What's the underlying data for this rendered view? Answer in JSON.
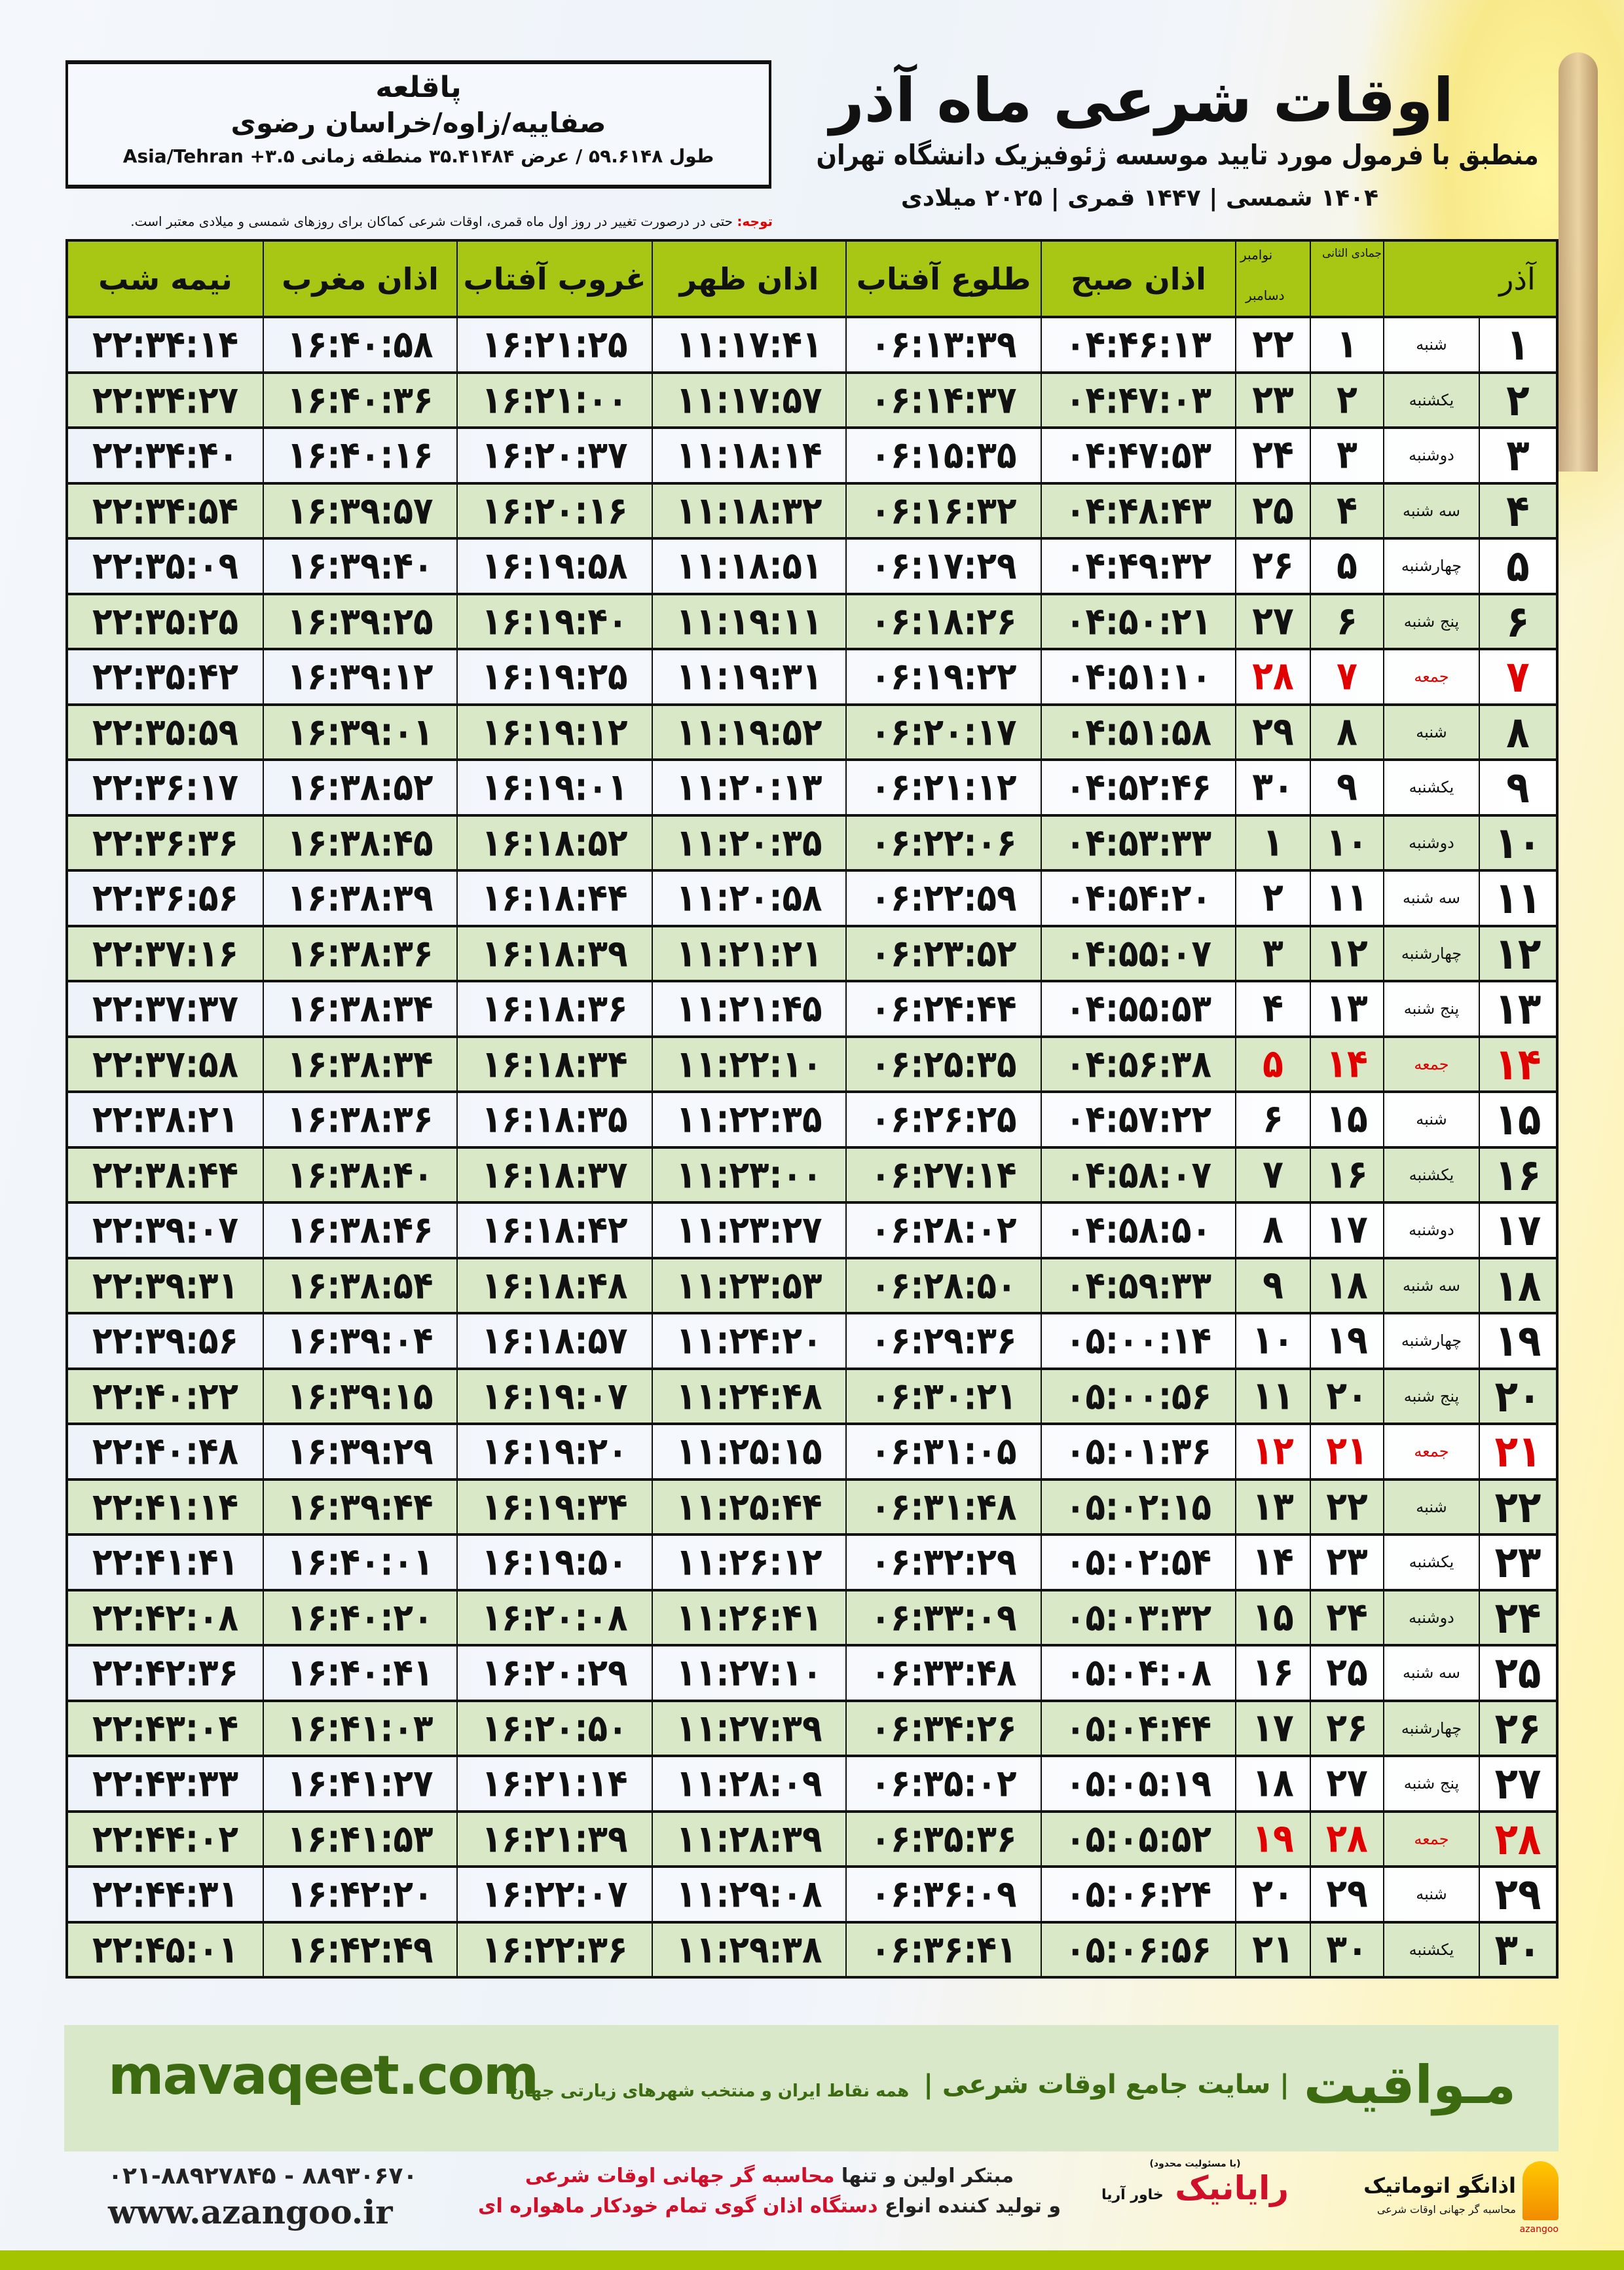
{
  "header": {
    "title": "اوقات شرعی ماه آذر",
    "subtitle": "منطبق با فرمول مورد تایید موسسه ژئوفیزیک دانشگاه تهران",
    "years": "۱۴۰۴ شمسی | ۱۴۴۷ قمری | ۲۰۲۵ میلادی"
  },
  "location": {
    "city": "پاقلعه",
    "region": "صفاییه/زاوه/خراسان رضوی",
    "coords": "طول ۵۹.۶۱۴۸ / عرض ۳۵.۴۱۴۸۴ منطقه زمانی ۳.۵+ Asia/Tehran"
  },
  "note": {
    "label": "توجه:",
    "text": " حتی در درصورت تغییر در روز اول ماه قمری، اوقات شرعی کماکان برای روزهای شمسی و میلادی معتبر است."
  },
  "table": {
    "columns": {
      "midnight": "نیمه شب",
      "maghrib": "اذان مغرب",
      "sunset": "غروب آفتاب",
      "dhuhr": "اذان ظهر",
      "sunrise": "طلوع آفتاب",
      "fajr": "اذان صبح",
      "hijri_month": "جمادی الثانی",
      "greg_month1": "نوامبر",
      "greg_month2": "دسامبر",
      "month": "آذر"
    },
    "friday_color": "#e00000",
    "header_color": "#a8c614",
    "rows": [
      {
        "day": "۱",
        "weekday": "شنبه",
        "hijri": "۱",
        "greg": "۲۲",
        "fajr": "۰۴:۴۶:۱۳",
        "sunrise": "۰۶:۱۳:۳۹",
        "dhuhr": "۱۱:۱۷:۴۱",
        "sunset": "۱۶:۲۱:۲۵",
        "maghrib": "۱۶:۴۰:۵۸",
        "midnight": "۲۲:۳۴:۱۴"
      },
      {
        "day": "۲",
        "weekday": "یکشنبه",
        "hijri": "۲",
        "greg": "۲۳",
        "fajr": "۰۴:۴۷:۰۳",
        "sunrise": "۰۶:۱۴:۳۷",
        "dhuhr": "۱۱:۱۷:۵۷",
        "sunset": "۱۶:۲۱:۰۰",
        "maghrib": "۱۶:۴۰:۳۶",
        "midnight": "۲۲:۳۴:۲۷"
      },
      {
        "day": "۳",
        "weekday": "دوشنبه",
        "hijri": "۳",
        "greg": "۲۴",
        "fajr": "۰۴:۴۷:۵۳",
        "sunrise": "۰۶:۱۵:۳۵",
        "dhuhr": "۱۱:۱۸:۱۴",
        "sunset": "۱۶:۲۰:۳۷",
        "maghrib": "۱۶:۴۰:۱۶",
        "midnight": "۲۲:۳۴:۴۰"
      },
      {
        "day": "۴",
        "weekday": "سه شنبه",
        "hijri": "۴",
        "greg": "۲۵",
        "fajr": "۰۴:۴۸:۴۳",
        "sunrise": "۰۶:۱۶:۳۲",
        "dhuhr": "۱۱:۱۸:۳۲",
        "sunset": "۱۶:۲۰:۱۶",
        "maghrib": "۱۶:۳۹:۵۷",
        "midnight": "۲۲:۳۴:۵۴"
      },
      {
        "day": "۵",
        "weekday": "چهارشنبه",
        "hijri": "۵",
        "greg": "۲۶",
        "fajr": "۰۴:۴۹:۳۲",
        "sunrise": "۰۶:۱۷:۲۹",
        "dhuhr": "۱۱:۱۸:۵۱",
        "sunset": "۱۶:۱۹:۵۸",
        "maghrib": "۱۶:۳۹:۴۰",
        "midnight": "۲۲:۳۵:۰۹"
      },
      {
        "day": "۶",
        "weekday": "پنج شنبه",
        "hijri": "۶",
        "greg": "۲۷",
        "fajr": "۰۴:۵۰:۲۱",
        "sunrise": "۰۶:۱۸:۲۶",
        "dhuhr": "۱۱:۱۹:۱۱",
        "sunset": "۱۶:۱۹:۴۰",
        "maghrib": "۱۶:۳۹:۲۵",
        "midnight": "۲۲:۳۵:۲۵"
      },
      {
        "day": "۷",
        "weekday": "جمعه",
        "friday": true,
        "hijri": "۷",
        "greg": "۲۸",
        "fajr": "۰۴:۵۱:۱۰",
        "sunrise": "۰۶:۱۹:۲۲",
        "dhuhr": "۱۱:۱۹:۳۱",
        "sunset": "۱۶:۱۹:۲۵",
        "maghrib": "۱۶:۳۹:۱۲",
        "midnight": "۲۲:۳۵:۴۲"
      },
      {
        "day": "۸",
        "weekday": "شنبه",
        "hijri": "۸",
        "greg": "۲۹",
        "fajr": "۰۴:۵۱:۵۸",
        "sunrise": "۰۶:۲۰:۱۷",
        "dhuhr": "۱۱:۱۹:۵۲",
        "sunset": "۱۶:۱۹:۱۲",
        "maghrib": "۱۶:۳۹:۰۱",
        "midnight": "۲۲:۳۵:۵۹"
      },
      {
        "day": "۹",
        "weekday": "یکشنبه",
        "hijri": "۹",
        "greg": "۳۰",
        "fajr": "۰۴:۵۲:۴۶",
        "sunrise": "۰۶:۲۱:۱۲",
        "dhuhr": "۱۱:۲۰:۱۳",
        "sunset": "۱۶:۱۹:۰۱",
        "maghrib": "۱۶:۳۸:۵۲",
        "midnight": "۲۲:۳۶:۱۷"
      },
      {
        "day": "۱۰",
        "weekday": "دوشنبه",
        "hijri": "۱۰",
        "greg": "۱",
        "fajr": "۰۴:۵۳:۳۳",
        "sunrise": "۰۶:۲۲:۰۶",
        "dhuhr": "۱۱:۲۰:۳۵",
        "sunset": "۱۶:۱۸:۵۲",
        "maghrib": "۱۶:۳۸:۴۵",
        "midnight": "۲۲:۳۶:۳۶"
      },
      {
        "day": "۱۱",
        "weekday": "سه شنبه",
        "hijri": "۱۱",
        "greg": "۲",
        "fajr": "۰۴:۵۴:۲۰",
        "sunrise": "۰۶:۲۲:۵۹",
        "dhuhr": "۱۱:۲۰:۵۸",
        "sunset": "۱۶:۱۸:۴۴",
        "maghrib": "۱۶:۳۸:۳۹",
        "midnight": "۲۲:۳۶:۵۶"
      },
      {
        "day": "۱۲",
        "weekday": "چهارشنبه",
        "hijri": "۱۲",
        "greg": "۳",
        "fajr": "۰۴:۵۵:۰۷",
        "sunrise": "۰۶:۲۳:۵۲",
        "dhuhr": "۱۱:۲۱:۲۱",
        "sunset": "۱۶:۱۸:۳۹",
        "maghrib": "۱۶:۳۸:۳۶",
        "midnight": "۲۲:۳۷:۱۶"
      },
      {
        "day": "۱۳",
        "weekday": "پنج شنبه",
        "hijri": "۱۳",
        "greg": "۴",
        "fajr": "۰۴:۵۵:۵۳",
        "sunrise": "۰۶:۲۴:۴۴",
        "dhuhr": "۱۱:۲۱:۴۵",
        "sunset": "۱۶:۱۸:۳۶",
        "maghrib": "۱۶:۳۸:۳۴",
        "midnight": "۲۲:۳۷:۳۷"
      },
      {
        "day": "۱۴",
        "weekday": "جمعه",
        "friday": true,
        "hijri": "۱۴",
        "greg": "۵",
        "fajr": "۰۴:۵۶:۳۸",
        "sunrise": "۰۶:۲۵:۳۵",
        "dhuhr": "۱۱:۲۲:۱۰",
        "sunset": "۱۶:۱۸:۳۴",
        "maghrib": "۱۶:۳۸:۳۴",
        "midnight": "۲۲:۳۷:۵۸"
      },
      {
        "day": "۱۵",
        "weekday": "شنبه",
        "hijri": "۱۵",
        "greg": "۶",
        "fajr": "۰۴:۵۷:۲۲",
        "sunrise": "۰۶:۲۶:۲۵",
        "dhuhr": "۱۱:۲۲:۳۵",
        "sunset": "۱۶:۱۸:۳۵",
        "maghrib": "۱۶:۳۸:۳۶",
        "midnight": "۲۲:۳۸:۲۱"
      },
      {
        "day": "۱۶",
        "weekday": "یکشنبه",
        "hijri": "۱۶",
        "greg": "۷",
        "fajr": "۰۴:۵۸:۰۷",
        "sunrise": "۰۶:۲۷:۱۴",
        "dhuhr": "۱۱:۲۳:۰۰",
        "sunset": "۱۶:۱۸:۳۷",
        "maghrib": "۱۶:۳۸:۴۰",
        "midnight": "۲۲:۳۸:۴۴"
      },
      {
        "day": "۱۷",
        "weekday": "دوشنبه",
        "hijri": "۱۷",
        "greg": "۸",
        "fajr": "۰۴:۵۸:۵۰",
        "sunrise": "۰۶:۲۸:۰۲",
        "dhuhr": "۱۱:۲۳:۲۷",
        "sunset": "۱۶:۱۸:۴۲",
        "maghrib": "۱۶:۳۸:۴۶",
        "midnight": "۲۲:۳۹:۰۷"
      },
      {
        "day": "۱۸",
        "weekday": "سه شنبه",
        "hijri": "۱۸",
        "greg": "۹",
        "fajr": "۰۴:۵۹:۳۳",
        "sunrise": "۰۶:۲۸:۵۰",
        "dhuhr": "۱۱:۲۳:۵۳",
        "sunset": "۱۶:۱۸:۴۸",
        "maghrib": "۱۶:۳۸:۵۴",
        "midnight": "۲۲:۳۹:۳۱"
      },
      {
        "day": "۱۹",
        "weekday": "چهارشنبه",
        "hijri": "۱۹",
        "greg": "۱۰",
        "fajr": "۰۵:۰۰:۱۴",
        "sunrise": "۰۶:۲۹:۳۶",
        "dhuhr": "۱۱:۲۴:۲۰",
        "sunset": "۱۶:۱۸:۵۷",
        "maghrib": "۱۶:۳۹:۰۴",
        "midnight": "۲۲:۳۹:۵۶"
      },
      {
        "day": "۲۰",
        "weekday": "پنج شنبه",
        "hijri": "۲۰",
        "greg": "۱۱",
        "fajr": "۰۵:۰۰:۵۶",
        "sunrise": "۰۶:۳۰:۲۱",
        "dhuhr": "۱۱:۲۴:۴۸",
        "sunset": "۱۶:۱۹:۰۷",
        "maghrib": "۱۶:۳۹:۱۵",
        "midnight": "۲۲:۴۰:۲۲"
      },
      {
        "day": "۲۱",
        "weekday": "جمعه",
        "friday": true,
        "hijri": "۲۱",
        "greg": "۱۲",
        "fajr": "۰۵:۰۱:۳۶",
        "sunrise": "۰۶:۳۱:۰۵",
        "dhuhr": "۱۱:۲۵:۱۵",
        "sunset": "۱۶:۱۹:۲۰",
        "maghrib": "۱۶:۳۹:۲۹",
        "midnight": "۲۲:۴۰:۴۸"
      },
      {
        "day": "۲۲",
        "weekday": "شنبه",
        "hijri": "۲۲",
        "greg": "۱۳",
        "fajr": "۰۵:۰۲:۱۵",
        "sunrise": "۰۶:۳۱:۴۸",
        "dhuhr": "۱۱:۲۵:۴۴",
        "sunset": "۱۶:۱۹:۳۴",
        "maghrib": "۱۶:۳۹:۴۴",
        "midnight": "۲۲:۴۱:۱۴"
      },
      {
        "day": "۲۳",
        "weekday": "یکشنبه",
        "hijri": "۲۳",
        "greg": "۱۴",
        "fajr": "۰۵:۰۲:۵۴",
        "sunrise": "۰۶:۳۲:۲۹",
        "dhuhr": "۱۱:۲۶:۱۲",
        "sunset": "۱۶:۱۹:۵۰",
        "maghrib": "۱۶:۴۰:۰۱",
        "midnight": "۲۲:۴۱:۴۱"
      },
      {
        "day": "۲۴",
        "weekday": "دوشنبه",
        "hijri": "۲۴",
        "greg": "۱۵",
        "fajr": "۰۵:۰۳:۳۲",
        "sunrise": "۰۶:۳۳:۰۹",
        "dhuhr": "۱۱:۲۶:۴۱",
        "sunset": "۱۶:۲۰:۰۸",
        "maghrib": "۱۶:۴۰:۲۰",
        "midnight": "۲۲:۴۲:۰۸"
      },
      {
        "day": "۲۵",
        "weekday": "سه شنبه",
        "hijri": "۲۵",
        "greg": "۱۶",
        "fajr": "۰۵:۰۴:۰۸",
        "sunrise": "۰۶:۳۳:۴۸",
        "dhuhr": "۱۱:۲۷:۱۰",
        "sunset": "۱۶:۲۰:۲۹",
        "maghrib": "۱۶:۴۰:۴۱",
        "midnight": "۲۲:۴۲:۳۶"
      },
      {
        "day": "۲۶",
        "weekday": "چهارشنبه",
        "hijri": "۲۶",
        "greg": "۱۷",
        "fajr": "۰۵:۰۴:۴۴",
        "sunrise": "۰۶:۳۴:۲۶",
        "dhuhr": "۱۱:۲۷:۳۹",
        "sunset": "۱۶:۲۰:۵۰",
        "maghrib": "۱۶:۴۱:۰۳",
        "midnight": "۲۲:۴۳:۰۴"
      },
      {
        "day": "۲۷",
        "weekday": "پنج شنبه",
        "hijri": "۲۷",
        "greg": "۱۸",
        "fajr": "۰۵:۰۵:۱۹",
        "sunrise": "۰۶:۳۵:۰۲",
        "dhuhr": "۱۱:۲۸:۰۹",
        "sunset": "۱۶:۲۱:۱۴",
        "maghrib": "۱۶:۴۱:۲۷",
        "midnight": "۲۲:۴۳:۳۳"
      },
      {
        "day": "۲۸",
        "weekday": "جمعه",
        "friday": true,
        "hijri": "۲۸",
        "greg": "۱۹",
        "fajr": "۰۵:۰۵:۵۲",
        "sunrise": "۰۶:۳۵:۳۶",
        "dhuhr": "۱۱:۲۸:۳۹",
        "sunset": "۱۶:۲۱:۳۹",
        "maghrib": "۱۶:۴۱:۵۳",
        "midnight": "۲۲:۴۴:۰۲"
      },
      {
        "day": "۲۹",
        "weekday": "شنبه",
        "hijri": "۲۹",
        "greg": "۲۰",
        "fajr": "۰۵:۰۶:۲۴",
        "sunrise": "۰۶:۳۶:۰۹",
        "dhuhr": "۱۱:۲۹:۰۸",
        "sunset": "۱۶:۲۲:۰۷",
        "maghrib": "۱۶:۴۲:۲۰",
        "midnight": "۲۲:۴۴:۳۱"
      },
      {
        "day": "۳۰",
        "weekday": "یکشنبه",
        "hijri": "۳۰",
        "greg": "۲۱",
        "fajr": "۰۵:۰۶:۵۶",
        "sunrise": "۰۶:۳۶:۴۱",
        "dhuhr": "۱۱:۲۹:۳۸",
        "sunset": "۱۶:۲۲:۳۶",
        "maghrib": "۱۶:۴۲:۴۹",
        "midnight": "۲۲:۴۵:۰۱"
      }
    ]
  },
  "footer": {
    "site_url": "mavaqeet.com",
    "site_name": "مـواقیت",
    "site_tagline": "| سایت جامع اوقات شرعی |",
    "site_tagline2": "همه نقاط ایران و منتخب شهرهای زیارتی جهان",
    "phones": "۰۲۱-۸۸۹۲۷۸۴۵ - ۸۸۹۳۰۶۷۰",
    "website": "www.azangoo.ir",
    "promo1_a": "مبتکر اولین و تنها ",
    "promo1_b": "محاسبه گر جهانی اوقات شرعی",
    "promo2_a": "و تولید کننده انواع ",
    "promo2_b": "دستگاه اذان گوی تمام خودکار ماهواره ای",
    "brand_color": "#3b6a10",
    "highlight_color": "#d0102a",
    "logo_raya_small": "(با مسئولیت محدود)",
    "logo_raya": "رایانیک",
    "logo_raya_sub": "خاور آریا",
    "logo_azangoo": "اذانگو اتوماتیک",
    "logo_azangoo_sub": "محاسبه گر جهانی اوقات شرعی",
    "logo_azangoo_latin": "azangoo"
  }
}
